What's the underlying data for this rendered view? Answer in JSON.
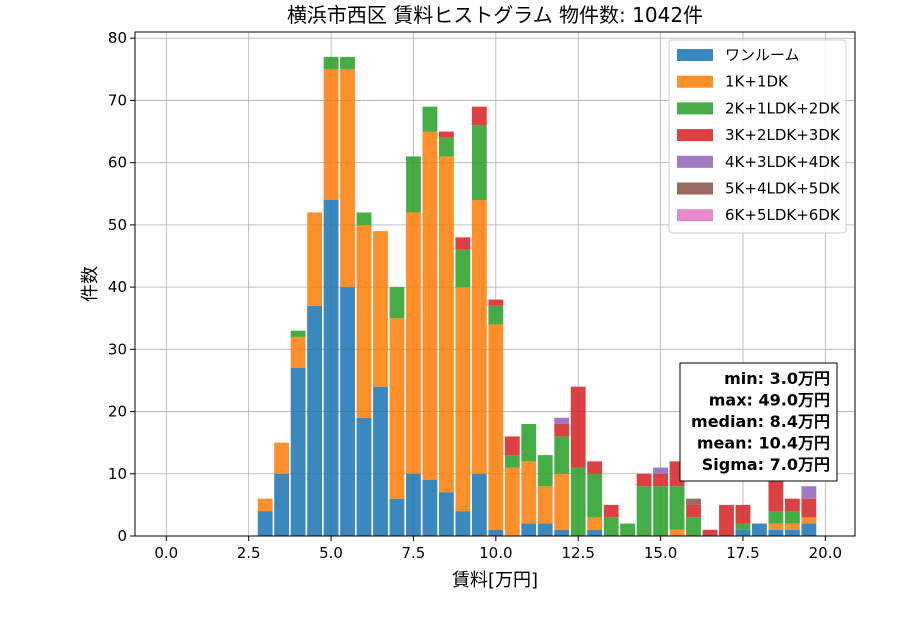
{
  "colors": {
    "ワンルーム": "#1f77b4",
    "1K+1DK": "#ff7f0e",
    "2K+1LDK+2DK": "#2ca02c",
    "3K+2LDK+3DK": "#d62728",
    "4K+3LDK+4DK": "#9467bd",
    "5K+4LDK+5DK": "#8c564b",
    "6K+5LDK+6DK": "#e377c2"
  },
  "chart_data": {
    "type": "bar",
    "stacked": true,
    "title": "横浜市西区 賃料ヒストグラム 物件数: 1042件",
    "xlabel": "賃料[万円]",
    "ylabel": "件数",
    "xlim": [
      -0.95,
      20.9
    ],
    "ylim": [
      0,
      81
    ],
    "xticks": [
      "0.0",
      "2.5",
      "5.0",
      "7.5",
      "10.0",
      "12.5",
      "15.0",
      "17.5",
      "20.0"
    ],
    "yticks": [
      "0",
      "10",
      "20",
      "30",
      "40",
      "50",
      "60",
      "70",
      "80"
    ],
    "grid": true,
    "legend_position": "top-right",
    "bin_width": 0.5,
    "x": [
      3.0,
      3.5,
      4.0,
      4.5,
      5.0,
      5.5,
      6.0,
      6.5,
      7.0,
      7.5,
      8.0,
      8.5,
      9.0,
      9.5,
      10.0,
      10.5,
      11.0,
      11.5,
      12.0,
      12.5,
      13.0,
      13.5,
      14.0,
      14.5,
      15.0,
      15.5,
      16.0,
      16.5,
      17.0,
      17.5,
      18.0,
      18.5,
      19.0,
      19.5
    ],
    "series": [
      {
        "name": "ワンルーム",
        "values": [
          4,
          10,
          27,
          37,
          54,
          40,
          19,
          24,
          6,
          10,
          9,
          7,
          4,
          10,
          1,
          0,
          2,
          2,
          1,
          0,
          1,
          0,
          0,
          0,
          0,
          0,
          0,
          0,
          0,
          1,
          2,
          1,
          1,
          2
        ]
      },
      {
        "name": "1K+1DK",
        "values": [
          2,
          5,
          5,
          15,
          21,
          35,
          31,
          25,
          29,
          42,
          56,
          54,
          36,
          44,
          33,
          11,
          10,
          6,
          9,
          0,
          2,
          0,
          0,
          0,
          0,
          1,
          0,
          0,
          0,
          0,
          0,
          1,
          1,
          1
        ]
      },
      {
        "name": "2K+1LDK+2DK",
        "values": [
          0,
          0,
          1,
          0,
          2,
          2,
          2,
          0,
          5,
          9,
          4,
          3,
          6,
          12,
          3,
          2,
          6,
          5,
          6,
          11,
          7,
          3,
          2,
          8,
          8,
          7,
          3,
          0,
          0,
          1,
          0,
          2,
          2,
          0
        ]
      },
      {
        "name": "3K+2LDK+3DK",
        "values": [
          0,
          0,
          0,
          0,
          0,
          0,
          0,
          0,
          0,
          0,
          0,
          1,
          2,
          3,
          1,
          3,
          0,
          0,
          2,
          13,
          2,
          2,
          0,
          2,
          2,
          4,
          2,
          1,
          5,
          3,
          0,
          5,
          2,
          3
        ]
      },
      {
        "name": "4K+3LDK+4DK",
        "values": [
          0,
          0,
          0,
          0,
          0,
          0,
          0,
          0,
          0,
          0,
          0,
          0,
          0,
          0,
          0,
          0,
          0,
          0,
          1,
          0,
          0,
          0,
          0,
          0,
          1,
          0,
          0,
          0,
          0,
          0,
          0,
          0,
          0,
          2
        ]
      },
      {
        "name": "5K+4LDK+5DK",
        "values": [
          0,
          0,
          0,
          0,
          0,
          0,
          0,
          0,
          0,
          0,
          0,
          0,
          0,
          0,
          0,
          0,
          0,
          0,
          0,
          0,
          0,
          0,
          0,
          0,
          0,
          0,
          1,
          0,
          0,
          0,
          0,
          0,
          0,
          0
        ]
      },
      {
        "name": "6K+5LDK+6DK",
        "values": [
          0,
          0,
          0,
          0,
          0,
          0,
          0,
          0,
          0,
          0,
          0,
          0,
          0,
          0,
          0,
          0,
          0,
          0,
          0,
          0,
          0,
          0,
          0,
          0,
          0,
          0,
          0,
          0,
          0,
          0,
          0,
          0,
          0,
          0
        ]
      }
    ],
    "annotations": [
      "min: 3.0万円",
      "max: 49.0万円",
      "median: 8.4万円",
      "mean: 10.4万円",
      "Sigma: 7.0万円"
    ]
  }
}
